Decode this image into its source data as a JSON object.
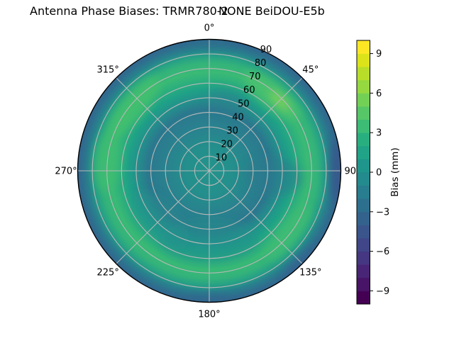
{
  "figure": {
    "title_main": "Antenna Phase Biases: TRMR780-2",
    "title_sub": "NONE BeiDOU-E5b"
  },
  "chart_data": {
    "type": "heatmap",
    "projection": "polar",
    "title": "Antenna Phase Biases: TRMR780-2      NONE BeiDOU-E5b",
    "antenna": "TRMR780-2",
    "radome": "NONE",
    "signal": "BeiDOU-E5b",
    "angular_ticks": [
      {
        "label": "0°",
        "deg": 0
      },
      {
        "label": "45°",
        "deg": 45
      },
      {
        "label": "90°",
        "deg": 90,
        "note": "degree sign hidden behind colorbar"
      },
      {
        "label": "135°",
        "deg": 135
      },
      {
        "label": "180°",
        "deg": 180
      },
      {
        "label": "225°",
        "deg": 225
      },
      {
        "label": "270°",
        "deg": 270
      },
      {
        "label": "315°",
        "deg": 315
      }
    ],
    "radial_tick_labels": [
      "10",
      "20",
      "30",
      "40",
      "50",
      "60",
      "70",
      "80",
      "90"
    ],
    "radial_range": [
      0,
      90
    ],
    "radial_label_azimuth_deg": 22.5,
    "grid": true,
    "colorbar": {
      "label": "Bias (mm)",
      "tick_labels": [
        "9",
        "6",
        "3",
        "0",
        "−3",
        "−6",
        "−9"
      ],
      "tick_values": [
        9,
        6,
        3,
        0,
        -3,
        -6,
        -9
      ],
      "range": [
        -10,
        10
      ],
      "colormap": "viridis",
      "n_levels": 20,
      "level_colors_bottom_to_top": [
        "#440154",
        "#481467",
        "#482576",
        "#453781",
        "#404688",
        "#39558c",
        "#33638d",
        "#2d708e",
        "#287d8e",
        "#238a8d",
        "#1f968b",
        "#20a386",
        "#29af7f",
        "#3cbc75",
        "#56c667",
        "#73d056",
        "#95d840",
        "#b8de29",
        "#dce319",
        "#fde725"
      ]
    },
    "radial_profile_bias_mm": [
      {
        "zenith": 0,
        "bias": 0.3
      },
      {
        "zenith": 10,
        "bias": 0.1
      },
      {
        "zenith": 20,
        "bias": -0.2
      },
      {
        "zenith": 30,
        "bias": -0.6
      },
      {
        "zenith": 40,
        "bias": -0.9
      },
      {
        "zenith": 50,
        "bias": 0.2
      },
      {
        "zenith": 60,
        "bias": 1.2
      },
      {
        "zenith": 70,
        "bias": 2.0
      },
      {
        "zenith": 75,
        "bias": 1.8
      },
      {
        "zenith": 80,
        "bias": 0.8
      },
      {
        "zenith": 85,
        "bias": -0.8
      },
      {
        "zenith": 90,
        "bias": -3.0
      }
    ],
    "azimuthal_features": [
      {
        "azimuth_deg": 45,
        "zenith": 67,
        "bias": 3.0,
        "note": "bright green patch NE"
      },
      {
        "azimuth_deg": 290,
        "zenith": 70,
        "bias": 2.8,
        "note": "bright green patch W-NW"
      },
      {
        "azimuth_deg": 130,
        "zenith": 69,
        "bias": 2.5,
        "note": "green patch SE"
      },
      {
        "azimuth_deg": 90,
        "zenith": 89,
        "bias": -4.0,
        "note": "dark blue outer rim E"
      },
      {
        "azimuth_deg": 95,
        "zenith": 45,
        "bias": -1.2,
        "note": "darker teal sector E mid-radius"
      },
      {
        "azimuth_deg": 330,
        "zenith": 48,
        "bias": -1.2,
        "note": "darker ring N-NW mid-radius"
      }
    ],
    "field_render": {
      "gradient_stops": [
        {
          "offset": 0.0,
          "color": "#23938b"
        },
        {
          "offset": 0.18,
          "color": "#248f8c"
        },
        {
          "offset": 0.34,
          "color": "#29818e"
        },
        {
          "offset": 0.47,
          "color": "#2b788e"
        },
        {
          "offset": 0.56,
          "color": "#22938b"
        },
        {
          "offset": 0.62,
          "color": "#1fa187"
        },
        {
          "offset": 0.68,
          "color": "#2bae7e"
        },
        {
          "offset": 0.75,
          "color": "#3aba75"
        },
        {
          "offset": 0.82,
          "color": "#33b37a"
        },
        {
          "offset": 0.875,
          "color": "#26a086"
        },
        {
          "offset": 0.92,
          "color": "#28828d"
        },
        {
          "offset": 0.965,
          "color": "#2e6f8e"
        },
        {
          "offset": 1.0,
          "color": "#33658e"
        }
      ],
      "patches": [
        {
          "az": 40,
          "zen": 67,
          "rt": 24,
          "rr": 8,
          "color": "#4cc16d",
          "opacity": 0.75
        },
        {
          "az": 45,
          "zen": 68,
          "rt": 9,
          "rr": 3,
          "color": "#9ad84d",
          "opacity": 0.6
        },
        {
          "az": 275,
          "zen": 70,
          "rt": 20,
          "rr": 9,
          "color": "#40be71",
          "opacity": 0.7
        },
        {
          "az": 310,
          "zen": 68,
          "rt": 26,
          "rr": 8,
          "color": "#44c06e",
          "opacity": 0.75
        },
        {
          "az": 128,
          "zen": 69,
          "rt": 22,
          "rr": 7,
          "color": "#3ebc73",
          "opacity": 0.7
        },
        {
          "az": 95,
          "zen": 44,
          "rt": 13,
          "rr": 20,
          "color": "#2a7a8e",
          "opacity": 0.5
        },
        {
          "az": 15,
          "zen": 49,
          "rt": 14,
          "rr": 8,
          "color": "#2a7e8e",
          "opacity": 0.45
        },
        {
          "az": 180,
          "zen": 48,
          "rt": 34,
          "rr": 15,
          "color": "#21918c",
          "opacity": 0.5
        },
        {
          "az": 225,
          "zen": 48,
          "rt": 25,
          "rr": 13,
          "color": "#22928b",
          "opacity": 0.4
        },
        {
          "az": 90,
          "zen": 87,
          "rt": 22,
          "rr": 4,
          "color": "#3b548c",
          "opacity": 0.85
        },
        {
          "az": 135,
          "zen": 88,
          "rt": 15,
          "rr": 3.5,
          "color": "#356191",
          "opacity": 0.6
        },
        {
          "az": 180,
          "zen": 88,
          "rt": 19,
          "rr": 3.5,
          "color": "#33678e",
          "opacity": 0.65
        },
        {
          "az": 0,
          "zen": 88,
          "rt": 15,
          "rr": 3,
          "color": "#2d758e",
          "opacity": 0.5
        }
      ],
      "grid_color": "#b8b8b8",
      "spine_color": "#000000"
    }
  }
}
